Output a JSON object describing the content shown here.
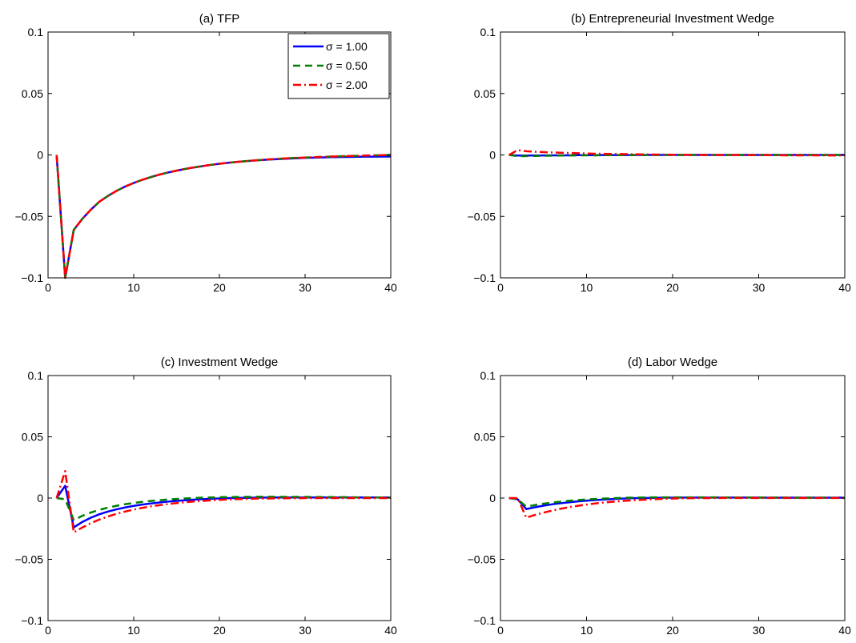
{
  "chart_data": [
    {
      "type": "line",
      "title": "(a) TFP",
      "xlim": [
        0,
        40
      ],
      "ylim": [
        -0.1,
        0.1
      ],
      "xticks": [
        0,
        10,
        20,
        30,
        40
      ],
      "xtick_labels": [
        "0",
        "10",
        "20",
        "30",
        "40"
      ],
      "yticks": [
        -0.1,
        -0.05,
        0,
        0.05,
        0.1
      ],
      "ytick_labels": [
        "−0.1",
        "−0.05",
        "0",
        "0.05",
        "0.1"
      ],
      "grid": false,
      "legend": {
        "position": "top-right"
      },
      "x": [
        1,
        2,
        3,
        4,
        5,
        6,
        7,
        8,
        9,
        10,
        11,
        12,
        13,
        14,
        15,
        16,
        17,
        18,
        19,
        20,
        21,
        22,
        23,
        24,
        25,
        26,
        27,
        28,
        29,
        30,
        31,
        32,
        33,
        34,
        35,
        36,
        37,
        38,
        39,
        40
      ],
      "series": [
        {
          "name": "σ = 1.00",
          "color": "#0000ff",
          "dash": "solid",
          "values": [
            0,
            -0.1,
            -0.061,
            -0.052,
            -0.0445,
            -0.038,
            -0.0333,
            -0.0292,
            -0.0257,
            -0.0228,
            -0.0202,
            -0.018,
            -0.016,
            -0.0143,
            -0.0128,
            -0.0114,
            -0.0102,
            -0.0091,
            -0.0081,
            -0.0072,
            -0.0064,
            -0.0057,
            -0.0051,
            -0.0046,
            -0.0041,
            -0.0037,
            -0.0033,
            -0.003,
            -0.0027,
            -0.0024,
            -0.0022,
            -0.002,
            -0.0018,
            -0.0017,
            -0.0016,
            -0.0015,
            -0.0014,
            -0.0014,
            -0.0013,
            -0.0013
          ]
        },
        {
          "name": "σ = 0.50",
          "color": "#008000",
          "dash": "dashed",
          "values": [
            0,
            -0.1,
            -0.061,
            -0.052,
            -0.0445,
            -0.038,
            -0.0333,
            -0.0292,
            -0.0257,
            -0.0228,
            -0.0202,
            -0.018,
            -0.016,
            -0.0143,
            -0.0128,
            -0.0114,
            -0.0102,
            -0.0091,
            -0.0081,
            -0.0072,
            -0.0064,
            -0.0057,
            -0.0051,
            -0.0045,
            -0.004,
            -0.0035,
            -0.0031,
            -0.0027,
            -0.0024,
            -0.0021,
            -0.0018,
            -0.0016,
            -0.0013,
            -0.0011,
            -0.0009,
            -0.0007,
            -0.0005,
            -0.0003,
            -0.0002,
            0
          ]
        },
        {
          "name": "σ = 2.00",
          "color": "#ff0000",
          "dash": "dashdot",
          "values": [
            0,
            -0.1,
            -0.061,
            -0.052,
            -0.0445,
            -0.038,
            -0.0333,
            -0.0292,
            -0.0257,
            -0.0228,
            -0.0202,
            -0.018,
            -0.016,
            -0.0143,
            -0.0128,
            -0.0114,
            -0.0102,
            -0.0091,
            -0.0081,
            -0.0072,
            -0.0064,
            -0.0057,
            -0.0051,
            -0.0045,
            -0.004,
            -0.0035,
            -0.0031,
            -0.0027,
            -0.0024,
            -0.0021,
            -0.0018,
            -0.0016,
            -0.0013,
            -0.0011,
            -0.0009,
            -0.0007,
            -0.0005,
            -0.0003,
            -0.0002,
            0
          ]
        }
      ]
    },
    {
      "type": "line",
      "title": "(b) Entrepreneurial Investment Wedge",
      "xlim": [
        0,
        40
      ],
      "ylim": [
        -0.1,
        0.1
      ],
      "xticks": [
        0,
        10,
        20,
        30,
        40
      ],
      "xtick_labels": [
        "0",
        "10",
        "20",
        "30",
        "40"
      ],
      "yticks": [
        -0.1,
        -0.05,
        0,
        0.05,
        0.1
      ],
      "ytick_labels": [
        "−0.1",
        "−0.05",
        "0",
        "0.05",
        "0.1"
      ],
      "grid": false,
      "x": [
        1,
        2,
        3,
        4,
        5,
        6,
        7,
        8,
        9,
        10,
        11,
        12,
        13,
        14,
        15,
        16,
        17,
        18,
        19,
        20,
        21,
        22,
        23,
        24,
        25,
        26,
        27,
        28,
        29,
        30,
        31,
        32,
        33,
        34,
        35,
        36,
        37,
        38,
        39,
        40
      ],
      "series": [
        {
          "color": "#0000ff",
          "dash": "solid",
          "values": [
            0,
            -0.0005,
            -0.0005,
            -0.0004,
            -0.0004,
            -0.0003,
            -0.0003,
            -0.0003,
            -0.0002,
            -0.0002,
            -0.0002,
            -0.0001,
            -0.0001,
            -0.0001,
            -0.0001,
            0,
            0,
            0,
            0,
            0,
            0,
            0,
            0,
            0,
            0,
            0,
            0,
            0,
            0,
            0,
            0,
            0,
            0,
            0,
            0,
            0,
            0,
            0,
            0,
            0
          ]
        },
        {
          "color": "#008000",
          "dash": "dashed",
          "values": [
            0,
            -0.001,
            -0.0009,
            -0.0008,
            -0.0007,
            -0.0006,
            -0.0005,
            -0.0004,
            -0.0004,
            -0.0003,
            -0.0003,
            -0.0002,
            -0.0002,
            -0.0002,
            -0.0001,
            -0.0001,
            -0.0001,
            -0.0001,
            0,
            0,
            0,
            0,
            0,
            0,
            0,
            0,
            0,
            0,
            0,
            0,
            0,
            0,
            0,
            0,
            0,
            0,
            0,
            0,
            0,
            0
          ]
        },
        {
          "color": "#ff0000",
          "dash": "dashdot",
          "values": [
            0,
            0.004,
            0.003,
            0.0026,
            0.0023,
            0.002,
            0.0018,
            0.0016,
            0.0014,
            0.0012,
            0.001,
            0.0009,
            0.0008,
            0.0007,
            0.0006,
            0.0005,
            0.0004,
            0.0003,
            0.0003,
            0.0002,
            0.0002,
            0.0001,
            0.0001,
            0,
            0,
            -0.0001,
            -0.0001,
            -0.0001,
            -0.0002,
            -0.0002,
            -0.0002,
            -0.0002,
            -0.0003,
            -0.0003,
            -0.0003,
            -0.0003,
            -0.0003,
            -0.0004,
            -0.0004,
            -0.0004
          ]
        }
      ]
    },
    {
      "type": "line",
      "title": "(c) Investment Wedge",
      "xlim": [
        0,
        40
      ],
      "ylim": [
        -0.1,
        0.1
      ],
      "xticks": [
        0,
        10,
        20,
        30,
        40
      ],
      "xtick_labels": [
        "0",
        "10",
        "20",
        "30",
        "40"
      ],
      "yticks": [
        -0.1,
        -0.05,
        0,
        0.05,
        0.1
      ],
      "ytick_labels": [
        "−0.1",
        "−0.05",
        "0",
        "0.05",
        "0.1"
      ],
      "grid": false,
      "x": [
        1,
        2,
        3,
        4,
        5,
        6,
        7,
        8,
        9,
        10,
        11,
        12,
        13,
        14,
        15,
        16,
        17,
        18,
        19,
        20,
        21,
        22,
        23,
        24,
        25,
        26,
        27,
        28,
        29,
        30,
        31,
        32,
        33,
        34,
        35,
        36,
        37,
        38,
        39,
        40
      ],
      "series": [
        {
          "color": "#0000ff",
          "dash": "solid",
          "values": [
            0,
            0.01,
            -0.024,
            -0.0195,
            -0.016,
            -0.0132,
            -0.011,
            -0.0092,
            -0.0077,
            -0.0064,
            -0.0053,
            -0.0044,
            -0.0036,
            -0.0029,
            -0.0023,
            -0.0018,
            -0.0013,
            -0.0009,
            -0.0006,
            -0.0003,
            -0.0001,
            0.0001,
            0.0002,
            0.0003,
            0.0004,
            0.0004,
            0.0005,
            0.0005,
            0.0005,
            0.0005,
            0.0005,
            0.0005,
            0.0005,
            0.0005,
            0.0005,
            0.0005,
            0.0005,
            0.0005,
            0.0005,
            0.0005
          ]
        },
        {
          "color": "#008000",
          "dash": "dashed",
          "values": [
            0,
            -0.001,
            -0.018,
            -0.0145,
            -0.0118,
            -0.0096,
            -0.0078,
            -0.0063,
            -0.005,
            -0.004,
            -0.0031,
            -0.0024,
            -0.0017,
            -0.0012,
            -0.0007,
            -0.0003,
            0,
            0.0003,
            0.0005,
            0.0007,
            0.0008,
            0.0009,
            0.001,
            0.001,
            0.0011,
            0.0011,
            0.001,
            0.001,
            0.001,
            0.0009,
            0.0009,
            0.0008,
            0.0008,
            0.0007,
            0.0007,
            0.0006,
            0.0006,
            0.0005,
            0.0005,
            0.0004
          ]
        },
        {
          "color": "#ff0000",
          "dash": "dashdot",
          "values": [
            0,
            0.022,
            -0.028,
            -0.024,
            -0.0205,
            -0.0175,
            -0.015,
            -0.0128,
            -0.011,
            -0.0094,
            -0.008,
            -0.0068,
            -0.0058,
            -0.0049,
            -0.0041,
            -0.0034,
            -0.0028,
            -0.0023,
            -0.0019,
            -0.0015,
            -0.0012,
            -0.0009,
            -0.0007,
            -0.0005,
            -0.0004,
            -0.0003,
            -0.0002,
            -0.0001,
            -0.0001,
            0,
            0,
            0,
            0,
            0,
            0,
            0,
            0,
            0,
            0,
            0
          ]
        }
      ]
    },
    {
      "type": "line",
      "title": "(d) Labor Wedge",
      "xlim": [
        0,
        40
      ],
      "ylim": [
        -0.1,
        0.1
      ],
      "xticks": [
        0,
        10,
        20,
        30,
        40
      ],
      "xtick_labels": [
        "0",
        "10",
        "20",
        "30",
        "40"
      ],
      "yticks": [
        -0.1,
        -0.05,
        0,
        0.05,
        0.1
      ],
      "ytick_labels": [
        "−0.1",
        "−0.05",
        "0",
        "0.05",
        "0.1"
      ],
      "grid": false,
      "x": [
        1,
        2,
        3,
        4,
        5,
        6,
        7,
        8,
        9,
        10,
        11,
        12,
        13,
        14,
        15,
        16,
        17,
        18,
        19,
        20,
        21,
        22,
        23,
        24,
        25,
        26,
        27,
        28,
        29,
        30,
        31,
        32,
        33,
        34,
        35,
        36,
        37,
        38,
        39,
        40
      ],
      "series": [
        {
          "color": "#0000ff",
          "dash": "solid",
          "values": [
            0,
            -0.001,
            -0.009,
            -0.0075,
            -0.0062,
            -0.0051,
            -0.0042,
            -0.0034,
            -0.0027,
            -0.0021,
            -0.0016,
            -0.0012,
            -0.0008,
            -0.0005,
            -0.0002,
            0,
            0.0001,
            0.0002,
            0.0003,
            0.0003,
            0.0004,
            0.0004,
            0.0004,
            0.0004,
            0.0004,
            0.0004,
            0.0004,
            0.0004,
            0.0004,
            0.0004,
            0.0003,
            0.0003,
            0.0003,
            0.0003,
            0.0003,
            0.0003,
            0.0003,
            0.0003,
            0.0003,
            0.0003
          ]
        },
        {
          "color": "#008000",
          "dash": "dashed",
          "values": [
            0,
            -0.001,
            -0.007,
            -0.0057,
            -0.0046,
            -0.0037,
            -0.0029,
            -0.0022,
            -0.0016,
            -0.0011,
            -0.0007,
            -0.0004,
            -0.0001,
            0.0001,
            0.0003,
            0.0004,
            0.0005,
            0.0006,
            0.0006,
            0.0006,
            0.0006,
            0.0006,
            0.0006,
            0.0006,
            0.0006,
            0.0005,
            0.0005,
            0.0005,
            0.0005,
            0.0004,
            0.0004,
            0.0004,
            0.0004,
            0.0003,
            0.0003,
            0.0003,
            0.0003,
            0.0003,
            0.0002,
            0.0002
          ]
        },
        {
          "color": "#ff0000",
          "dash": "dashdot",
          "values": [
            0,
            0,
            -0.016,
            -0.0138,
            -0.0119,
            -0.0102,
            -0.0087,
            -0.0074,
            -0.0063,
            -0.0053,
            -0.0044,
            -0.0037,
            -0.003,
            -0.0025,
            -0.002,
            -0.0016,
            -0.0012,
            -0.0009,
            -0.0006,
            -0.0004,
            -0.0002,
            -0.0001,
            0,
            0,
            0.0001,
            0.0001,
            0.0001,
            0.0001,
            0.0001,
            0.0001,
            0.0001,
            0.0001,
            0.0001,
            0.0001,
            0.0001,
            0.0001,
            0.0001,
            0.0001,
            0.0001,
            0.0001
          ]
        }
      ]
    }
  ]
}
